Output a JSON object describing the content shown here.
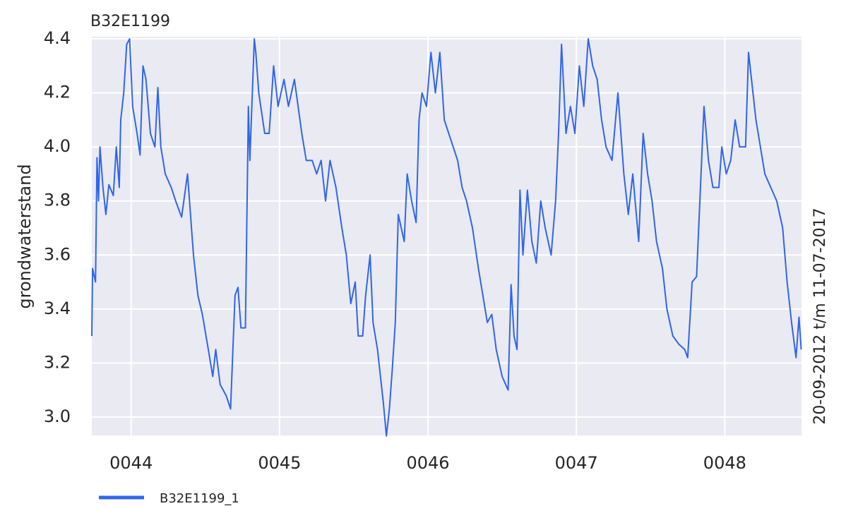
{
  "chart_data": {
    "type": "line",
    "title": "B32E1199",
    "y_label": "grondwaterstand",
    "side_label": "20-09-2012 t/m 11-07-2017",
    "x": [
      43.735,
      43.74,
      43.76,
      43.77,
      43.78,
      43.79,
      43.81,
      43.83,
      43.85,
      43.88,
      43.9,
      43.92,
      43.93,
      43.95,
      43.97,
      43.99,
      44.01,
      44.04,
      44.06,
      44.08,
      44.1,
      44.13,
      44.16,
      44.18,
      44.2,
      44.23,
      44.27,
      44.3,
      44.34,
      44.38,
      44.42,
      44.45,
      44.48,
      44.52,
      44.55,
      44.57,
      44.6,
      44.64,
      44.67,
      44.7,
      44.72,
      44.74,
      44.77,
      44.79,
      44.8,
      44.83,
      44.84,
      44.86,
      44.9,
      44.93,
      44.96,
      44.99,
      45.03,
      45.06,
      45.1,
      45.15,
      45.18,
      45.22,
      45.25,
      45.28,
      45.31,
      45.34,
      45.38,
      45.42,
      45.45,
      45.48,
      45.51,
      45.53,
      45.56,
      45.58,
      45.61,
      45.63,
      45.66,
      45.7,
      45.72,
      45.74,
      45.76,
      45.78,
      45.8,
      45.82,
      45.84,
      45.86,
      45.89,
      45.92,
      45.94,
      45.96,
      45.99,
      46.02,
      46.05,
      46.08,
      46.11,
      46.14,
      46.17,
      46.2,
      46.23,
      46.26,
      46.3,
      46.34,
      46.37,
      46.4,
      46.43,
      46.46,
      46.5,
      46.54,
      46.56,
      46.58,
      46.6,
      46.62,
      46.64,
      46.67,
      46.7,
      46.73,
      46.76,
      46.79,
      46.83,
      46.86,
      46.88,
      46.9,
      46.93,
      46.96,
      46.99,
      47.02,
      47.05,
      47.08,
      47.11,
      47.14,
      47.17,
      47.2,
      47.24,
      47.28,
      47.32,
      47.35,
      47.38,
      47.42,
      47.45,
      47.48,
      47.51,
      47.54,
      47.58,
      47.61,
      47.65,
      47.69,
      47.73,
      47.75,
      47.78,
      47.81,
      47.84,
      47.86,
      47.89,
      47.92,
      47.96,
      47.98,
      48.01,
      48.04,
      48.07,
      48.1,
      48.14,
      48.16,
      48.18,
      48.21,
      48.24,
      48.27,
      48.31,
      48.35,
      48.39,
      48.42,
      48.45,
      48.48,
      48.5,
      48.515
    ],
    "series": [
      {
        "name": "B32E1199_1",
        "color": "#2f66ea",
        "values": [
          3.3,
          3.55,
          3.5,
          3.96,
          3.8,
          4.0,
          3.85,
          3.75,
          3.86,
          3.82,
          4.0,
          3.85,
          4.1,
          4.2,
          4.38,
          4.4,
          4.15,
          4.05,
          3.97,
          4.3,
          4.25,
          4.05,
          4.0,
          4.22,
          4.0,
          3.9,
          3.85,
          3.8,
          3.74,
          3.9,
          3.6,
          3.45,
          3.38,
          3.25,
          3.15,
          3.25,
          3.12,
          3.08,
          3.03,
          3.45,
          3.48,
          3.33,
          3.33,
          4.15,
          3.95,
          4.4,
          4.35,
          4.2,
          4.05,
          4.05,
          4.3,
          4.15,
          4.25,
          4.15,
          4.25,
          4.05,
          3.95,
          3.95,
          3.9,
          3.95,
          3.8,
          3.95,
          3.85,
          3.7,
          3.6,
          3.42,
          3.5,
          3.3,
          3.3,
          3.45,
          3.6,
          3.35,
          3.25,
          3.05,
          2.93,
          3.03,
          3.18,
          3.35,
          3.75,
          3.7,
          3.65,
          3.9,
          3.8,
          3.72,
          4.1,
          4.2,
          4.15,
          4.35,
          4.2,
          4.35,
          4.1,
          4.05,
          4.0,
          3.95,
          3.85,
          3.8,
          3.7,
          3.55,
          3.45,
          3.35,
          3.38,
          3.25,
          3.15,
          3.1,
          3.49,
          3.3,
          3.25,
          3.84,
          3.6,
          3.84,
          3.65,
          3.57,
          3.8,
          3.7,
          3.6,
          3.8,
          4.05,
          4.38,
          4.05,
          4.15,
          4.05,
          4.3,
          4.15,
          4.4,
          4.3,
          4.25,
          4.1,
          4.0,
          3.95,
          4.2,
          3.9,
          3.75,
          3.9,
          3.65,
          4.05,
          3.9,
          3.8,
          3.65,
          3.55,
          3.4,
          3.3,
          3.27,
          3.25,
          3.22,
          3.5,
          3.52,
          3.9,
          4.15,
          3.95,
          3.85,
          3.85,
          4.0,
          3.9,
          3.95,
          4.1,
          4.0,
          4.0,
          4.35,
          4.25,
          4.1,
          4.0,
          3.9,
          3.85,
          3.8,
          3.7,
          3.5,
          3.35,
          3.22,
          3.37,
          3.25
        ]
      }
    ],
    "xlim": [
      43.735,
      48.517
    ],
    "xticks": [
      {
        "value": 44,
        "label": "0044"
      },
      {
        "value": 45,
        "label": "0045"
      },
      {
        "value": 46,
        "label": "0046"
      },
      {
        "value": 47,
        "label": "0047"
      },
      {
        "value": 48,
        "label": "0048"
      }
    ],
    "ylim": [
      2.932,
      4.408
    ],
    "yticks": [
      {
        "value": 3,
        "label": "3.0"
      },
      3.2,
      3.4,
      3.6,
      3.8,
      {
        "value": 4,
        "label": "4.0"
      },
      4.2,
      4.4
    ],
    "grid": true
  }
}
